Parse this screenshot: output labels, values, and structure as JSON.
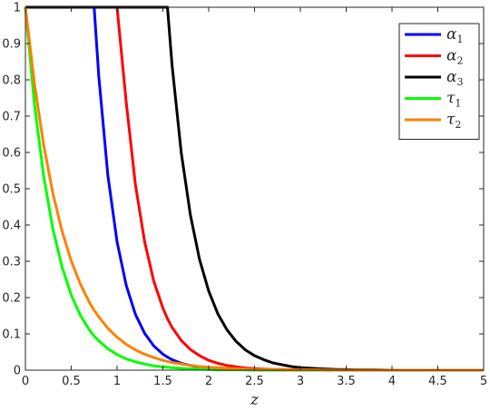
{
  "chart_data": {
    "type": "line",
    "title": "",
    "xlabel": "z",
    "ylabel": "",
    "xlim": [
      0,
      5
    ],
    "ylim": [
      0,
      1
    ],
    "xticks": [
      "0",
      "0.5",
      "1",
      "1.5",
      "2",
      "2.5",
      "3",
      "3.5",
      "4",
      "4.5",
      "5"
    ],
    "yticks": [
      "0",
      "0.1",
      "0.2",
      "0.3",
      "0.4",
      "0.5",
      "0.6",
      "0.7",
      "0.8",
      "0.9",
      "1"
    ],
    "grid": false,
    "legend_position": "top-right",
    "x": [
      0,
      0.1,
      0.2,
      0.3,
      0.4,
      0.5,
      0.6,
      0.7,
      0.75,
      0.8,
      0.9,
      1.0,
      1.1,
      1.2,
      1.3,
      1.4,
      1.5,
      1.55,
      1.6,
      1.7,
      1.8,
      1.9,
      2.0,
      2.1,
      2.2,
      2.3,
      2.4,
      2.5,
      2.6,
      2.7,
      2.8,
      2.9,
      3.0,
      3.2,
      3.4,
      3.6,
      3.8,
      4.0,
      4.5,
      5.0
    ],
    "series": [
      {
        "name": "α",
        "subscript": "1",
        "color": "#0000ff",
        "values": [
          1,
          1,
          1,
          1,
          1,
          1,
          1,
          1,
          1,
          0.812,
          0.536,
          0.354,
          0.234,
          0.154,
          0.102,
          0.067,
          0.044,
          0.036,
          0.029,
          0.019,
          0.013,
          0.008,
          0.006,
          0.004,
          0.002,
          0.002,
          0.001,
          0.001,
          0.0,
          0.0,
          0.0,
          0.0,
          0.0,
          0.0,
          0.0,
          0.0,
          0.0,
          0.0,
          0.0,
          0.0
        ]
      },
      {
        "name": "α",
        "subscript": "2",
        "color": "#ff0000",
        "values": [
          1,
          1,
          1,
          1,
          1,
          1,
          1,
          1,
          1,
          1,
          1,
          1,
          0.738,
          0.512,
          0.355,
          0.246,
          0.171,
          0.142,
          0.118,
          0.082,
          0.057,
          0.04,
          0.027,
          0.019,
          0.013,
          0.009,
          0.006,
          0.004,
          0.003,
          0.002,
          0.002,
          0.001,
          0.001,
          0.0,
          0.0,
          0.0,
          0.0,
          0.0,
          0.0,
          0.0
        ]
      },
      {
        "name": "α",
        "subscript": "3",
        "color": "#000000",
        "values": [
          1,
          1,
          1,
          1,
          1,
          1,
          1,
          1,
          1,
          1,
          1,
          1,
          1,
          1,
          1,
          1,
          1,
          1,
          0.841,
          0.6,
          0.428,
          0.305,
          0.218,
          0.155,
          0.111,
          0.079,
          0.056,
          0.04,
          0.029,
          0.02,
          0.015,
          0.01,
          0.007,
          0.004,
          0.002,
          0.001,
          0.001,
          0.0,
          0.0,
          0.0
        ]
      },
      {
        "name": "τ",
        "subscript": "1",
        "color": "#00ff00",
        "values": [
          1,
          0.73,
          0.533,
          0.389,
          0.284,
          0.207,
          0.151,
          0.11,
          0.094,
          0.081,
          0.059,
          0.043,
          0.031,
          0.023,
          0.017,
          0.012,
          0.009,
          0.008,
          0.007,
          0.005,
          0.003,
          0.003,
          0.002,
          0.001,
          0.001,
          0.001,
          0.001,
          0.0,
          0.0,
          0.0,
          0.0,
          0.0,
          0.0,
          0.0,
          0.0,
          0.0,
          0.0,
          0.0,
          0.0,
          0.0
        ]
      },
      {
        "name": "τ",
        "subscript": "2",
        "color": "#ff8000",
        "values": [
          1,
          0.787,
          0.619,
          0.487,
          0.383,
          0.301,
          0.237,
          0.186,
          0.165,
          0.147,
          0.115,
          0.091,
          0.071,
          0.056,
          0.044,
          0.035,
          0.027,
          0.024,
          0.021,
          0.017,
          0.013,
          0.01,
          0.008,
          0.007,
          0.005,
          0.004,
          0.003,
          0.002,
          0.002,
          0.002,
          0.001,
          0.001,
          0.001,
          0.001,
          0.0,
          0.0,
          0.0,
          0.0,
          0.0,
          0.0
        ]
      }
    ]
  }
}
